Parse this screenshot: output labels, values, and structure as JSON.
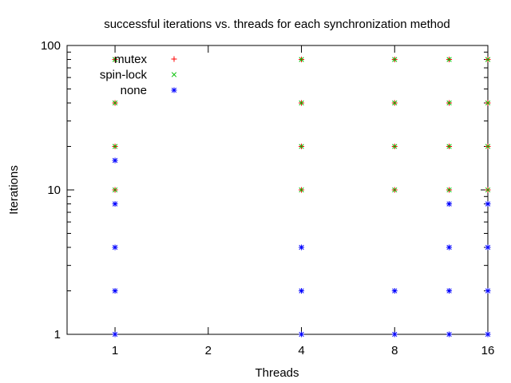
{
  "chart_data": {
    "type": "scatter",
    "title": "successful iterations vs. threads for each synchronization method",
    "xlabel": "Threads",
    "ylabel": "Iterations",
    "x_scale": "log2",
    "y_scale": "log10",
    "xlim": [
      0.7,
      16
    ],
    "ylim": [
      1,
      100
    ],
    "x_ticks": [
      1,
      2,
      4,
      8,
      16
    ],
    "x_tick_labels": [
      "1",
      "2",
      "4",
      "8",
      "16"
    ],
    "y_ticks": [
      1,
      10,
      100
    ],
    "y_tick_labels": [
      "1",
      "10",
      "100"
    ],
    "legend_position": "top-left",
    "series": [
      {
        "name": "mutex",
        "marker": "plus",
        "color": "#ff0000",
        "x": [
          1,
          1,
          1,
          1,
          4,
          4,
          4,
          4,
          8,
          8,
          8,
          8,
          12,
          12,
          12,
          12,
          16,
          16,
          16,
          16
        ],
        "y": [
          10,
          20,
          40,
          80,
          10,
          20,
          40,
          80,
          10,
          20,
          40,
          80,
          10,
          20,
          40,
          80,
          10,
          20,
          40,
          80
        ]
      },
      {
        "name": "spin-lock",
        "marker": "cross",
        "color": "#00c000",
        "x": [
          1,
          1,
          1,
          1,
          4,
          4,
          4,
          4,
          8,
          8,
          8,
          8,
          12,
          12,
          12,
          12,
          16,
          16,
          16,
          16
        ],
        "y": [
          10,
          20,
          40,
          80,
          10,
          20,
          40,
          80,
          10,
          20,
          40,
          80,
          10,
          20,
          40,
          80,
          10,
          20,
          40,
          80
        ]
      },
      {
        "name": "none",
        "marker": "star",
        "color": "#0000ff",
        "x": [
          1,
          1,
          1,
          1,
          1,
          4,
          4,
          4,
          8,
          8,
          12,
          12,
          12,
          12,
          16,
          16,
          16,
          16
        ],
        "y": [
          1,
          2,
          4,
          8,
          16,
          1,
          2,
          4,
          1,
          2,
          1,
          2,
          4,
          8,
          1,
          2,
          4,
          8
        ]
      }
    ]
  }
}
